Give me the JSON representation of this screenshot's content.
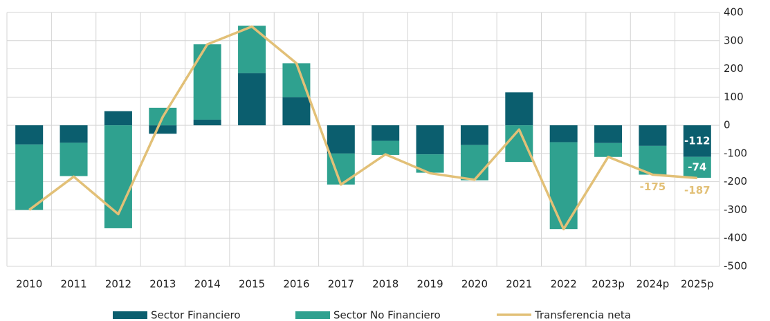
{
  "chart_data": {
    "type": "bar",
    "categories": [
      "2010",
      "2011",
      "2012",
      "2013",
      "2014",
      "2015",
      "2016",
      "2017",
      "2018",
      "2019",
      "2020",
      "2021",
      "2022",
      "2023p",
      "2024p",
      "2025p"
    ],
    "series": [
      {
        "name": "Sector Financiero",
        "color": "#0b5e6e",
        "type": "bar",
        "labeled": [
          15
        ],
        "values": [
          -68,
          -62,
          50,
          -30,
          20,
          185,
          100,
          -100,
          -55,
          -103,
          -70,
          117,
          -60,
          -63,
          -73,
          -112
        ]
      },
      {
        "name": "Sector No Financiero",
        "color": "#2fa18f",
        "type": "bar",
        "labeled": [
          15
        ],
        "values": [
          -232,
          -118,
          -365,
          62,
          267,
          168,
          120,
          -110,
          -50,
          -65,
          -125,
          -130,
          -308,
          -49,
          -102,
          -74
        ]
      },
      {
        "name": "Transferencia neta",
        "color": "#e2c077",
        "type": "line",
        "labeled": [
          14,
          15
        ],
        "values": [
          -300,
          -182,
          -315,
          30,
          287,
          350,
          220,
          -210,
          -103,
          -170,
          -193,
          -15,
          -368,
          -112,
          -175,
          -187
        ]
      }
    ],
    "ylim": [
      -500,
      400
    ],
    "yticks": [
      -500,
      -400,
      -300,
      -200,
      -100,
      0,
      100,
      200,
      300,
      400
    ],
    "grid": true
  }
}
